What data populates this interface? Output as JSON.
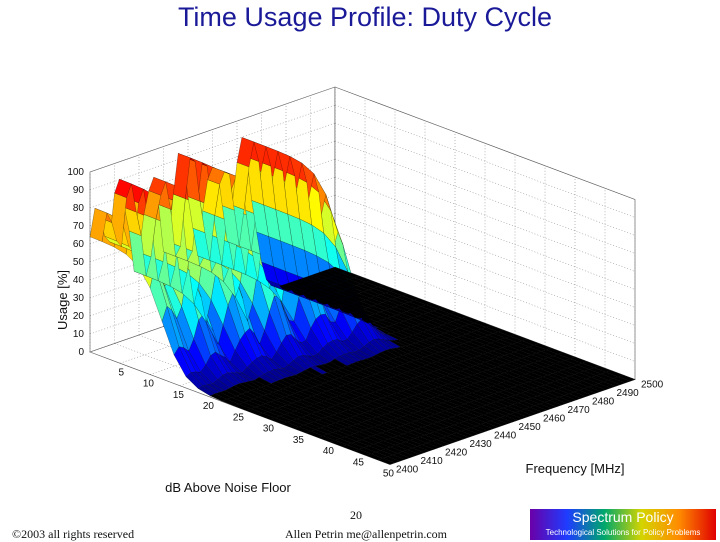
{
  "slide": {
    "title": "Time Usage Profile: Duty Cycle",
    "page_number": "20",
    "copyright": "©2003 all rights reserved",
    "author": "Allen Petrin  me@allenpetrin.com",
    "logo_title": "Spectrum Policy",
    "logo_subtitle": "Technological Solutions for Policy Problems"
  },
  "chart_data": {
    "type": "surface3d",
    "title": "",
    "zlabel": "Usage [%]",
    "xlabel": "dB Above Noise Floor",
    "ylabel": "Frequency [MHz]",
    "z_ticks": [
      0,
      10,
      20,
      30,
      40,
      50,
      60,
      70,
      80,
      90,
      100
    ],
    "x_ticks": [
      0,
      5,
      10,
      15,
      20,
      25,
      30,
      35,
      40,
      45,
      50
    ],
    "y_ticks": [
      2400,
      2410,
      2420,
      2430,
      2440,
      2450,
      2460,
      2470,
      2480,
      2490,
      2500
    ],
    "zlim": [
      0,
      100
    ],
    "xlim": [
      0,
      50
    ],
    "ylim": [
      2400,
      2500
    ],
    "colormap": "jet",
    "floor_color": "#000000",
    "peak_frequencies": [
      2403,
      2412,
      2425,
      2437,
      2450,
      2462
    ],
    "peak_usage": [
      82,
      93,
      88,
      96,
      86,
      90
    ],
    "decay_db": [
      12,
      13,
      14,
      15,
      16,
      17
    ]
  }
}
